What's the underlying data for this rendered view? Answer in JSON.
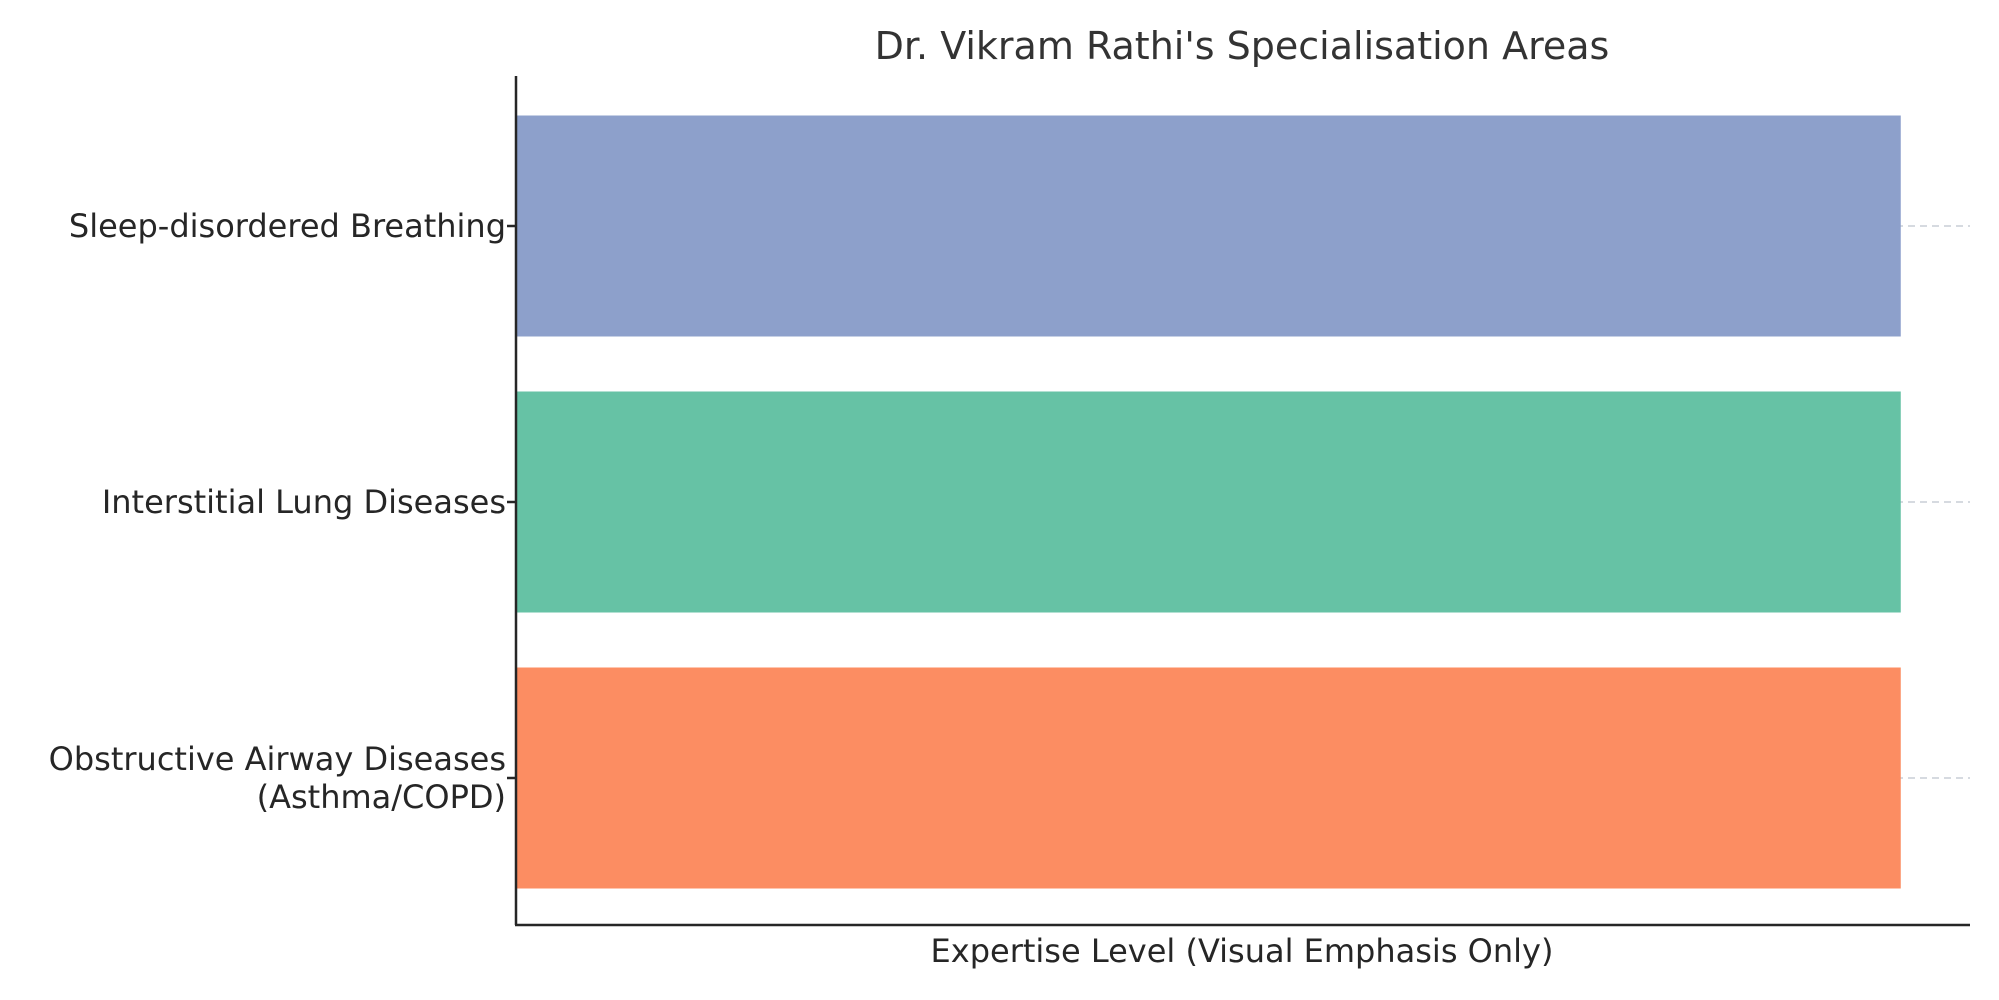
{
  "chart_data": {
    "type": "bar",
    "orientation": "horizontal",
    "title": "Dr. Vikram Rathi's Specialisation Areas",
    "xlabel": "Expertise Level (Visual Emphasis Only)",
    "ylabel": "",
    "categories": [
      "Sleep-disordered Breathing",
      "Interstitial Lung Diseases",
      "Obstructive Airway Diseases\n(Asthma/COPD)"
    ],
    "values": [
      1,
      1,
      1
    ],
    "colors": [
      "#8da0cb",
      "#66c2a5",
      "#fc8d62"
    ],
    "xlim": [
      0,
      1.05
    ],
    "x_ticks_visible": false,
    "grid": "horizontal dashed lines at category positions",
    "legend": "none"
  }
}
